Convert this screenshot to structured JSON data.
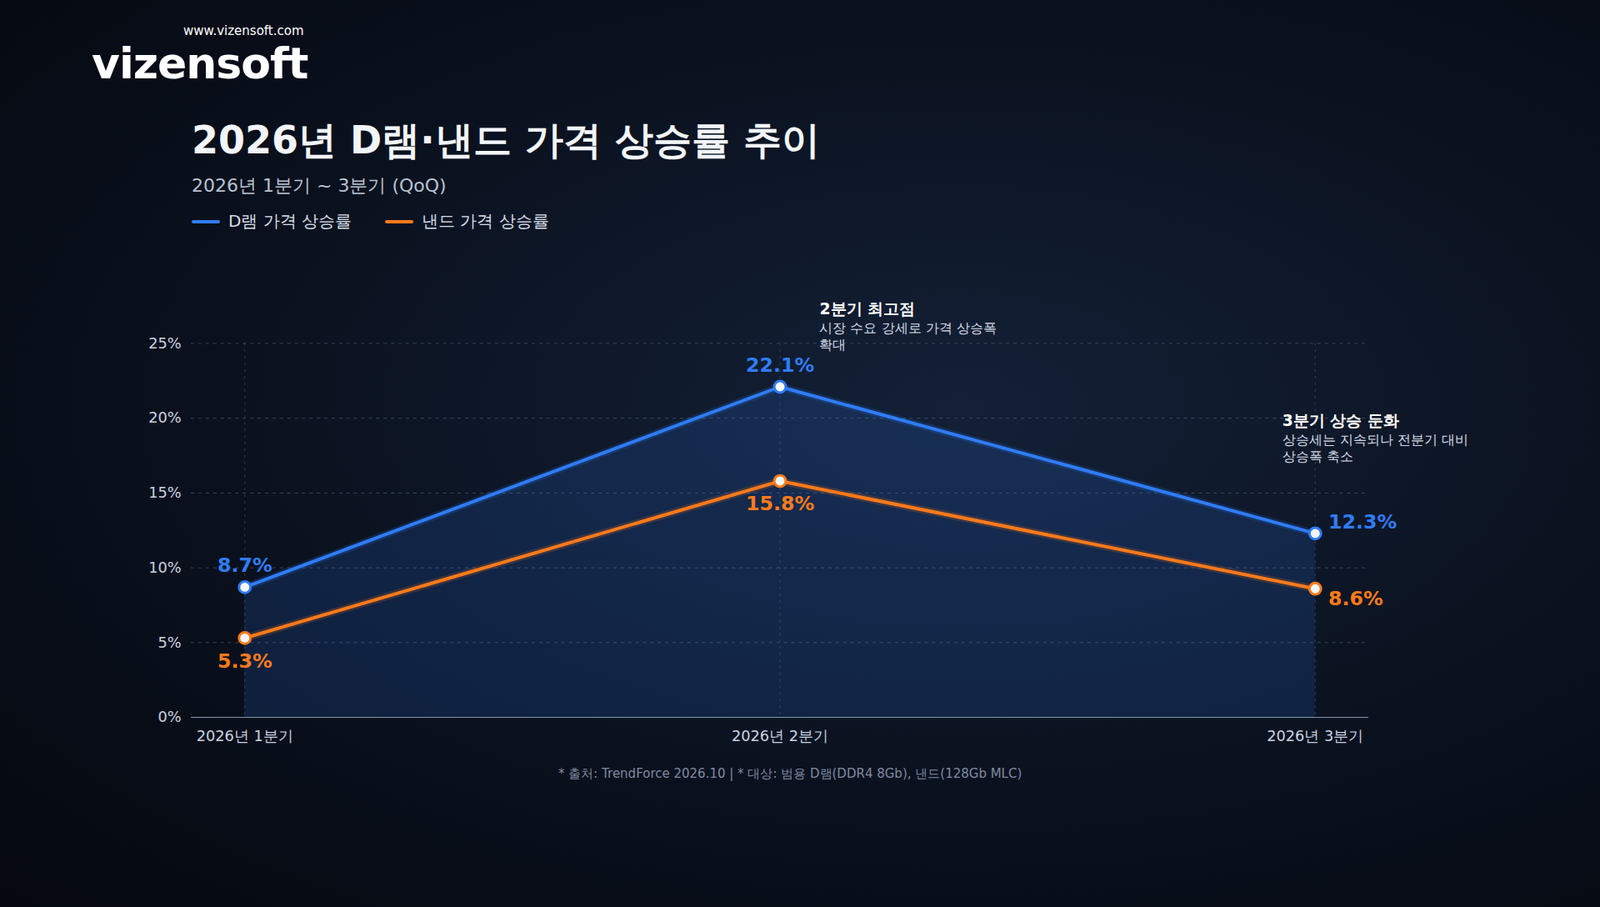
{
  "chart_data": {
    "type": "line",
    "title": "2026년 D램·낸드 가격 상승률 추이",
    "subtitle": "2026년 1분기 ~ 3분기 (QoQ)",
    "categories": [
      "2026년 1분기",
      "2026년 2분기",
      "2026년 3분기"
    ],
    "series": [
      {
        "name": "D램 가격 상승률",
        "color": "#2f7cf6",
        "marker": "circle",
        "values": [
          8.7,
          22.1,
          12.3
        ],
        "value_labels": [
          "8.7%",
          "22.1%",
          "12.3%"
        ]
      },
      {
        "name": "낸드 가격 상승률",
        "color": "#ff7a1a",
        "marker": "circle",
        "values": [
          5.3,
          15.8,
          8.6
        ],
        "value_labels": [
          "5.3%",
          "15.8%",
          "8.6%"
        ]
      }
    ],
    "ylim": [
      0,
      25
    ],
    "yticks": [
      {
        "value": 0,
        "label": "0%"
      },
      {
        "value": 5,
        "label": "5%"
      },
      {
        "value": 10,
        "label": "10%"
      },
      {
        "value": 15,
        "label": "15%"
      },
      {
        "value": 20,
        "label": "20%"
      },
      {
        "value": 25,
        "label": "25%"
      }
    ],
    "grid": true,
    "data_labels": true,
    "legend": "top-left",
    "annotations": [
      {
        "category": "2026년 2분기",
        "title": "2분기 최고점",
        "text": "시장 수요 강세로 가격 상승폭 확대"
      },
      {
        "category": "2026년 3분기",
        "title": "3분기 상승 둔화",
        "text": "상승세는 지속되나 전분기 대비 상승폭 축소"
      }
    ],
    "note": "* 출처: TrendForce 2026.10  |  * 대상: 범용 D램(DDR4 8Gb), 낸드(128Gb MLC)",
    "brand": {
      "name": "vizensoft",
      "url": "www.vizensoft.com"
    }
  }
}
